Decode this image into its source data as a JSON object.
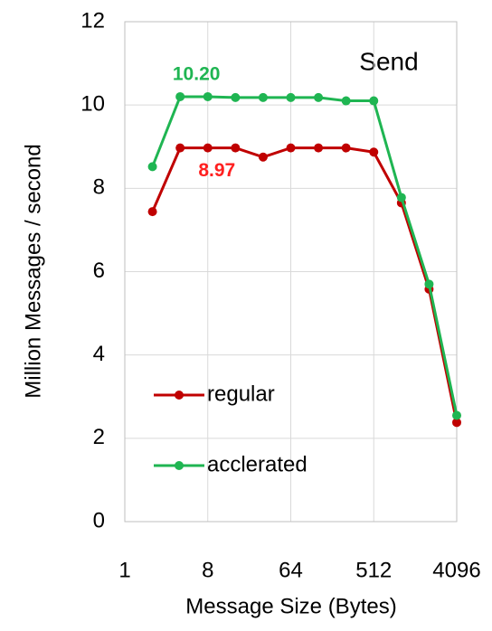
{
  "chart_data": {
    "type": "line",
    "annotation": "Send",
    "xlabel": "Message Size (Bytes)",
    "ylabel": "Million Messages / second",
    "x": [
      2,
      4,
      8,
      16,
      32,
      64,
      128,
      256,
      512,
      1024,
      2048,
      4096
    ],
    "series": [
      {
        "name": "regular",
        "color": "#c00000",
        "values": [
          7.44,
          8.97,
          8.97,
          8.97,
          8.75,
          8.97,
          8.97,
          8.97,
          8.87,
          7.65,
          5.58,
          2.38
        ],
        "value_labels": [
          null,
          null,
          "8.97",
          null,
          null,
          null,
          null,
          null,
          null,
          null,
          null,
          null
        ],
        "label_color": "#ff2020"
      },
      {
        "name": "acclerated",
        "color": "#1fb552",
        "values": [
          8.52,
          10.2,
          10.2,
          10.18,
          10.18,
          10.18,
          10.18,
          10.1,
          10.1,
          7.78,
          5.7,
          2.55
        ],
        "value_labels": [
          null,
          "10.20",
          null,
          null,
          null,
          null,
          null,
          null,
          null,
          null,
          null,
          null
        ],
        "label_color": "#1fb552"
      }
    ],
    "xscale": "log2",
    "xlim": [
      1,
      4096
    ],
    "xticks": [
      1,
      8,
      64,
      512,
      4096
    ],
    "ylim": [
      0,
      12
    ],
    "yticks": [
      0,
      2,
      4,
      6,
      8,
      10,
      12
    ],
    "grid": true,
    "legend": "lower left"
  }
}
